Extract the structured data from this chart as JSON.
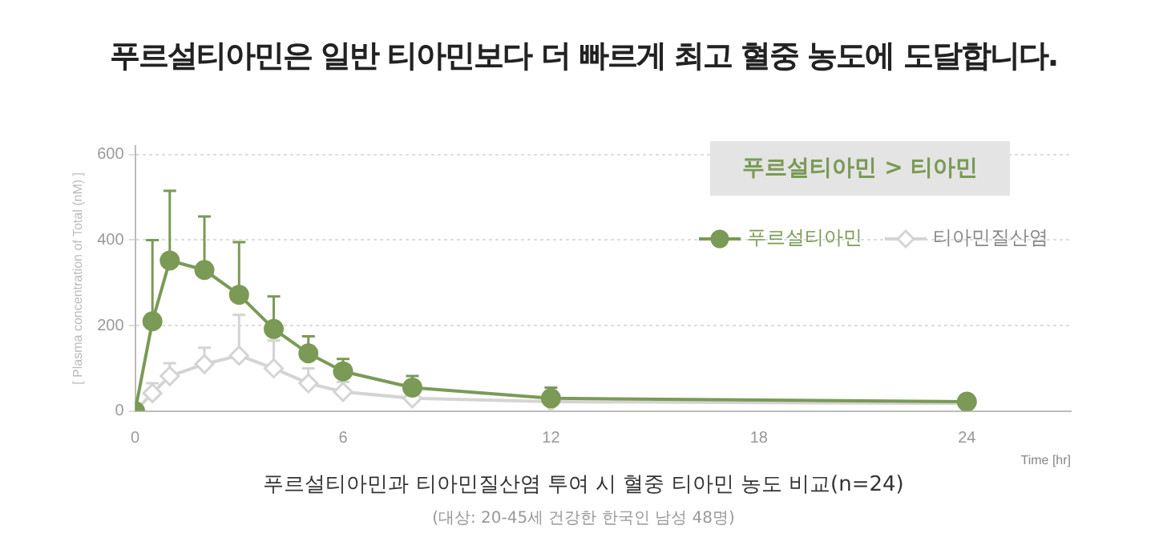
{
  "chart_data": {
    "type": "line",
    "title": "푸르설티아민은 일반 티아민보다 더 빠르게 최고 혈중 농도에 도달합니다.",
    "xlabel": "Time [hr]",
    "ylabel": "[ Plasma concentration of Total (nM) ]",
    "x": [
      0,
      0.5,
      1,
      2,
      3,
      4,
      5,
      6,
      8,
      12,
      24
    ],
    "series": [
      {
        "name": "푸르설티아민",
        "color": "#7a9a56",
        "marker": "circle",
        "values": [
          0,
          210,
          352,
          330,
          272,
          192,
          135,
          93,
          55,
          30,
          22
        ],
        "errors": [
          null,
          [
            210,
            400
          ],
          [
            352,
            515
          ],
          [
            330,
            455
          ],
          [
            272,
            395
          ],
          [
            192,
            268
          ],
          [
            135,
            175
          ],
          [
            93,
            122
          ],
          [
            55,
            82
          ],
          [
            30,
            55
          ],
          [
            22,
            35
          ]
        ]
      },
      {
        "name": "티아민질산염",
        "color": "#d4d4d4",
        "marker": "diamond",
        "values": [
          0,
          42,
          82,
          110,
          130,
          100,
          65,
          45,
          30,
          22,
          18
        ],
        "errors": [
          null,
          [
            42,
            65
          ],
          [
            82,
            112
          ],
          [
            110,
            148
          ],
          [
            130,
            225
          ],
          [
            100,
            165
          ],
          [
            65,
            100
          ],
          [
            45,
            68
          ],
          null,
          null,
          null
        ]
      }
    ],
    "xlim": [
      0,
      27
    ],
    "xticks": [
      0,
      6,
      12,
      18,
      24
    ],
    "ylim": [
      0,
      620
    ],
    "yticks": [
      0,
      200,
      400,
      600
    ],
    "grid": "y",
    "legend": "top right",
    "line_style": "solid",
    "annotations": [
      "푸르설티아민 > 티아민",
      "푸르설티아민과 티아민질산염 투여 시 혈중 티아민 농도 비교(n=24)",
      "(대상: 20-45세 건강한 한국인 남성 48명)"
    ]
  }
}
